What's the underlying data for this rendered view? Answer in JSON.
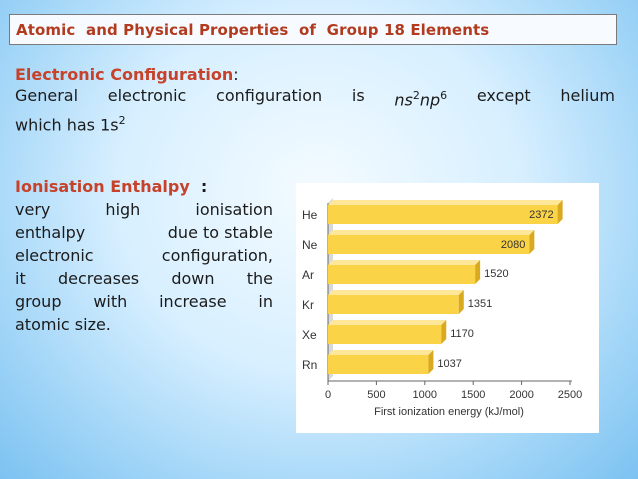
{
  "slide": {
    "title": "Atomic  and Physical Properties  of  Group 18 Elements",
    "electronic_config": {
      "heading": "Electronic Configuration",
      "heading_colon": ":",
      "line1_words": [
        "General",
        "electronic",
        "configuration",
        "is"
      ],
      "ns": "ns",
      "ns_exp": "2",
      "np": "np",
      "np_exp": "6",
      "line1_tail_words": [
        "except",
        "helium"
      ],
      "line2_prefix": "which has 1s",
      "line2_exp": "2"
    },
    "ionisation": {
      "heading": "Ionisation Enthalpy",
      "heading_colon": ":",
      "lines": [
        [
          "very",
          "high",
          "ionisation"
        ],
        [
          "enthalpy",
          "due to stable"
        ],
        [
          "electronic",
          "configuration,"
        ],
        [
          "it",
          "decreases",
          "down",
          "the"
        ],
        [
          "group",
          "with",
          "increase",
          "in"
        ],
        [
          "atomic size."
        ]
      ]
    }
  },
  "chart_data": {
    "type": "bar",
    "orientation": "horizontal",
    "categories": [
      "He",
      "Ne",
      "Ar",
      "Kr",
      "Xe",
      "Rn"
    ],
    "values": [
      2372,
      2080,
      1520,
      1351,
      1170,
      1037
    ],
    "data_labels": [
      "2372",
      "2080",
      "1520",
      "1351",
      "1170",
      "1037"
    ],
    "xlabel": "First ionization energy (kJ/mol)",
    "xlim": [
      0,
      2500
    ],
    "xticks": [
      0,
      500,
      1000,
      1500,
      2000,
      2500
    ],
    "bar_color": "#fbd347",
    "style": "3d"
  }
}
